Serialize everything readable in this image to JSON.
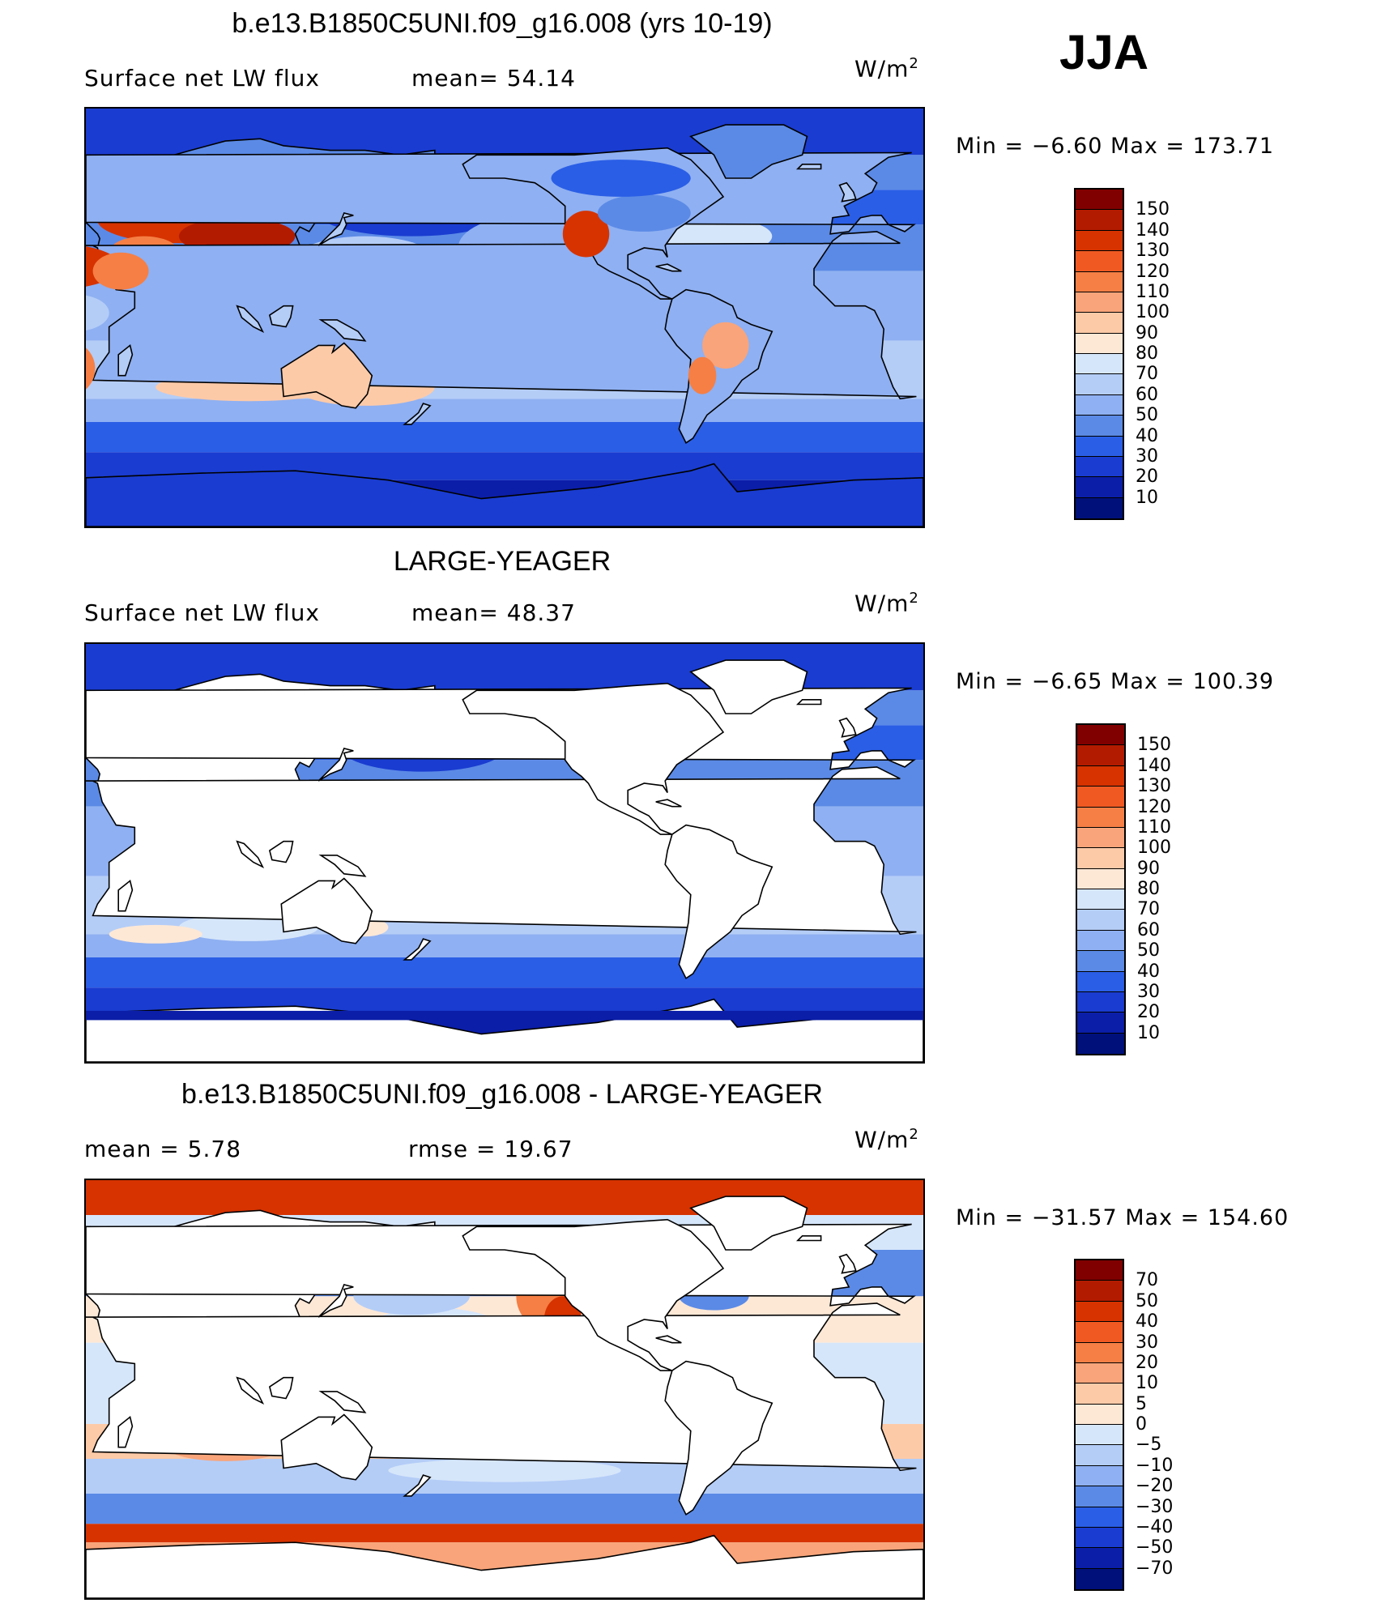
{
  "season": "JJA",
  "panels": [
    {
      "id": "model",
      "title": "b.e13.B1850C5UNI.f09_g16.008 (yrs 10-19)",
      "subtitle_left": "Surface net LW flux",
      "subtitle_mid": "mean=  54.14",
      "units_base": "W/m",
      "units_exp": "2",
      "minmax": "Min  =   −6.60  Max  =  173.71",
      "colorbar_labels": [
        "150",
        "140",
        "130",
        "120",
        "110",
        "100",
        "90",
        "80",
        "70",
        "60",
        "50",
        "40",
        "30",
        "20",
        "10"
      ],
      "colorbar_colors": [
        "#800000",
        "#b31b00",
        "#d63300",
        "#f05a22",
        "#f57f45",
        "#f9a47a",
        "#fdcaa8",
        "#fde8d6",
        "#d6e6fa",
        "#b4cdf7",
        "#8fb0f2",
        "#5b8ae6",
        "#2a5ee6",
        "#1a3cd0",
        "#0b1ea8",
        "#00107a"
      ]
    },
    {
      "id": "obs",
      "title": "LARGE-YEAGER",
      "subtitle_left": "Surface net LW flux",
      "subtitle_mid": "mean=  48.37",
      "units_base": "W/m",
      "units_exp": "2",
      "minmax": "Min  =   −6.65  Max  =  100.39",
      "colorbar_labels": [
        "150",
        "140",
        "130",
        "120",
        "110",
        "100",
        "90",
        "80",
        "70",
        "60",
        "50",
        "40",
        "30",
        "20",
        "10"
      ],
      "colorbar_colors": [
        "#800000",
        "#b31b00",
        "#d63300",
        "#f05a22",
        "#f57f45",
        "#f9a47a",
        "#fdcaa8",
        "#fde8d6",
        "#d6e6fa",
        "#b4cdf7",
        "#8fb0f2",
        "#5b8ae6",
        "#2a5ee6",
        "#1a3cd0",
        "#0b1ea8",
        "#00107a"
      ]
    },
    {
      "id": "diff",
      "title": "b.e13.B1850C5UNI.f09_g16.008 - LARGE-YEAGER",
      "subtitle_left": "mean =     5.78",
      "subtitle_mid": "rmse  =    19.67",
      "units_base": "W/m",
      "units_exp": "2",
      "minmax": "Min  = −31.57  Max  =  154.60",
      "colorbar_labels": [
        "70",
        "50",
        "40",
        "30",
        "20",
        "10",
        "5",
        "0",
        "−5",
        "−10",
        "−20",
        "−30",
        "−40",
        "−50",
        "−70"
      ],
      "colorbar_colors": [
        "#800000",
        "#b31b00",
        "#d63300",
        "#f05a22",
        "#f57f45",
        "#f9a47a",
        "#fdcaa8",
        "#fde8d6",
        "#d6e6fa",
        "#b4cdf7",
        "#8fb0f2",
        "#5b8ae6",
        "#2a5ee6",
        "#1a3cd0",
        "#0b1ea8",
        "#00107a"
      ]
    }
  ],
  "map_colors": {
    "deep": "#0b1ea8",
    "dark": "#1a3cd0",
    "mid": "#2a5ee6",
    "medium": "#5b8ae6",
    "light": "#8fb0f2",
    "pale": "#b4cdf7",
    "palest": "#d6e6fa",
    "cream": "#fde8d6",
    "peach": "#fdcaa8",
    "salmon": "#f9a47a",
    "orange": "#f57f45",
    "red": "#d63300",
    "darkred": "#b31b00",
    "land": "#ffffff",
    "coast": "#000000"
  }
}
